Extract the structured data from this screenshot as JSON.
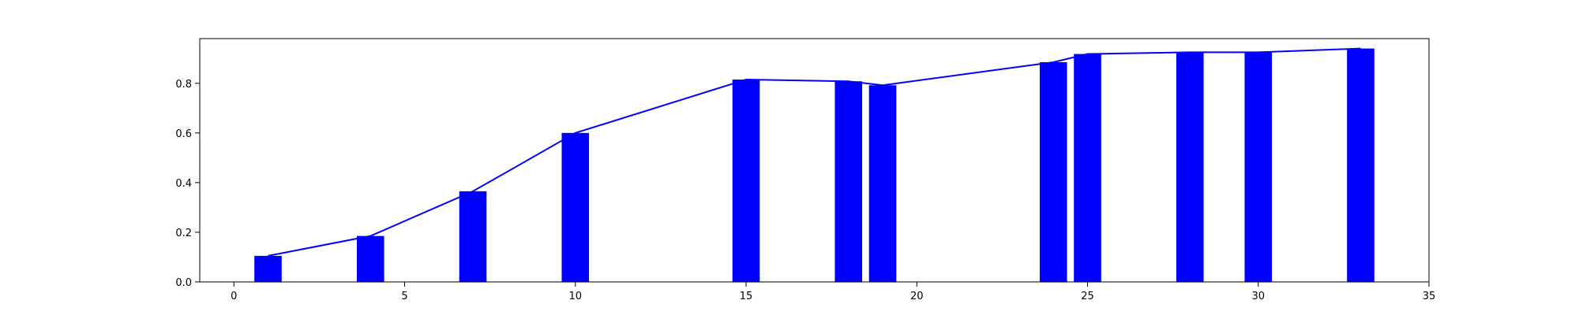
{
  "chart_data": {
    "type": "bar",
    "title": "",
    "xlabel": "",
    "ylabel": "",
    "xlim": [
      -1,
      35
    ],
    "ylim": [
      0,
      0.98
    ],
    "grid": false,
    "bar_color": "#0000ff",
    "line_color": "#0000ff",
    "bar_width": 0.8,
    "xticks": [
      0,
      5,
      10,
      15,
      20,
      25,
      30,
      35
    ],
    "yticks": [
      0.0,
      0.2,
      0.4,
      0.6,
      0.8
    ],
    "xtick_labels": [
      "0",
      "5",
      "10",
      "15",
      "20",
      "25",
      "30",
      "35"
    ],
    "ytick_labels": [
      "0.0",
      "0.2",
      "0.4",
      "0.6",
      "0.8"
    ],
    "series": [
      {
        "type": "bar",
        "x": [
          1,
          4,
          7,
          10,
          15,
          18,
          19,
          24,
          25,
          28,
          30,
          33
        ],
        "values": [
          0.105,
          0.185,
          0.365,
          0.6,
          0.815,
          0.808,
          0.792,
          0.885,
          0.918,
          0.925,
          0.925,
          0.94
        ]
      },
      {
        "type": "line",
        "x": [
          1,
          4,
          7,
          10,
          15,
          18,
          19,
          24,
          25,
          28,
          30,
          33
        ],
        "values": [
          0.105,
          0.185,
          0.365,
          0.6,
          0.815,
          0.808,
          0.792,
          0.885,
          0.918,
          0.925,
          0.925,
          0.94
        ]
      }
    ]
  }
}
